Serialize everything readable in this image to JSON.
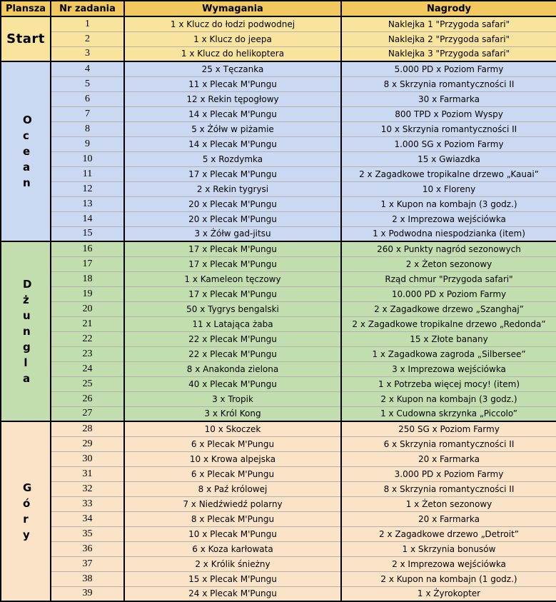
{
  "header": {
    "columns": [
      "Plansza",
      "Nr zadania",
      "Wymagania",
      "Nagrody"
    ]
  },
  "colors": {
    "header_bg": "#F1C95E",
    "border": "#000000",
    "start_bg": "#F9E49E",
    "ocean_bg": "#CAD9F1",
    "jungle_bg": "#C3DEAE",
    "mountains_bg": "#FBE3C7"
  },
  "sections": [
    {
      "label": "Start",
      "label_orientation": "horizontal",
      "bg": "#F9E49E",
      "tasks": [
        {
          "nr": "1",
          "wymagania": "1 x Klucz do łodzi podwodnej",
          "nagrody": "Naklejka 1 \"Przygoda safari\""
        },
        {
          "nr": "2",
          "wymagania": "1 x Klucz do jeepa",
          "nagrody": "Naklejka 2 \"Przygoda safari\""
        },
        {
          "nr": "3",
          "wymagania": "1 x Klucz do helikoptera",
          "nagrody": "Naklejka 3 \"Przygoda safari\""
        }
      ]
    },
    {
      "label": "Ocean",
      "label_orientation": "vertical",
      "bg": "#CAD9F1",
      "tasks": [
        {
          "nr": "4",
          "wymagania": "25 x Tęczanka",
          "nagrody": "5.000 PD x Poziom Farmy"
        },
        {
          "nr": "5",
          "wymagania": "11 x Plecak M'Pungu",
          "nagrody": "8 x Skrzynia romantyczności II"
        },
        {
          "nr": "6",
          "wymagania": "12 x Rekin tępogłowy",
          "nagrody": "30 x Farmarka"
        },
        {
          "nr": "7",
          "wymagania": "14 x Plecak M'Pungu",
          "nagrody": "800 TPD x Poziom Wyspy"
        },
        {
          "nr": "8",
          "wymagania": "5 x Żółw w piżamie",
          "nagrody": "10 x Skrzynia romantyczności II"
        },
        {
          "nr": "9",
          "wymagania": "14 x Plecak M'Pungu",
          "nagrody": "1.000 SG x Poziom Farmy"
        },
        {
          "nr": "10",
          "wymagania": "5 x Rozdymka",
          "nagrody": "15 x Gwiazdka"
        },
        {
          "nr": "11",
          "wymagania": "17 x Plecak M'Pungu",
          "nagrody": "2 x Zagadkowe tropikalne drzewo „Kauai”"
        },
        {
          "nr": "12",
          "wymagania": "2 x Rekin tygrysi",
          "nagrody": "10 x Floreny"
        },
        {
          "nr": "13",
          "wymagania": "20 x Plecak M'Pungu",
          "nagrody": "1 x Kupon na kombajn (3 godz.)"
        },
        {
          "nr": "14",
          "wymagania": "20 x Plecak M'Pungu",
          "nagrody": "2 x Imprezowa wejściówka"
        },
        {
          "nr": "15",
          "wymagania": "3 x Żółw gad-jitsu",
          "nagrody": "1 x Podwodna niespodzianka (item)"
        }
      ]
    },
    {
      "label": "Dżungla",
      "label_orientation": "vertical",
      "bg": "#C3DEAE",
      "tasks": [
        {
          "nr": "16",
          "wymagania": "17 x Plecak M'Pungu",
          "nagrody": "260 x Punkty nagród sezonowych"
        },
        {
          "nr": "17",
          "wymagania": "17 x Plecak M'Pungu",
          "nagrody": "2 x Żeton sezonowy"
        },
        {
          "nr": "18",
          "wymagania": "1 x Kameleon tęczowy",
          "nagrody": "Rząd chmur \"Przygoda safari\""
        },
        {
          "nr": "19",
          "wymagania": "17 x Plecak M'Pungu",
          "nagrody": "10.000 PD x Poziom Farmy"
        },
        {
          "nr": "20",
          "wymagania": "50 x Tygrys bengalski",
          "nagrody": "2 x Zagadkowe drzewo „Szanghaj”"
        },
        {
          "nr": "21",
          "wymagania": "11 x Latająca żaba",
          "nagrody": "2 x Zagadkowe tropikalne drzewo „Redonda”"
        },
        {
          "nr": "22",
          "wymagania": "22 x Plecak M'Pungu",
          "nagrody": "15 x Złote banany"
        },
        {
          "nr": "23",
          "wymagania": "22 x Plecak M'Pungu",
          "nagrody": "1 x Zagadkowa zagroda „Silbersee”"
        },
        {
          "nr": "24",
          "wymagania": "8 x Anakonda zielona",
          "nagrody": "3 x Imprezowa wejściówka"
        },
        {
          "nr": "25",
          "wymagania": "40 x Plecak M'Pungu",
          "nagrody": "1 x Potrzeba więcej mocy! (item)"
        },
        {
          "nr": "26",
          "wymagania": "3 x Tropik",
          "nagrody": "2 x Kupon na kombajn (3 godz.)"
        },
        {
          "nr": "27",
          "wymagania": "3 x Król Kong",
          "nagrody": "1 x Cudowna skrzynka „Piccolo”"
        }
      ]
    },
    {
      "label": "Góry",
      "label_orientation": "vertical",
      "bg": "#FBE3C7",
      "tasks": [
        {
          "nr": "28",
          "wymagania": "10 x Skoczek",
          "nagrody": "250 SG x Poziom Farmy"
        },
        {
          "nr": "29",
          "wymagania": "6 x Plecak M'Pungu",
          "nagrody": "6 x Skrzynia romantyczności II"
        },
        {
          "nr": "30",
          "wymagania": "10 x Krowa alpejska",
          "nagrody": "20 x Farmarka"
        },
        {
          "nr": "31",
          "wymagania": "6 x Plecak M'Pungu",
          "nagrody": "3.000 PD x Poziom Farmy"
        },
        {
          "nr": "32",
          "wymagania": "8 x Paź królowej",
          "nagrody": "8 x Skrzynia romantyczności II"
        },
        {
          "nr": "33",
          "wymagania": "7 x Niedźwiedź polarny",
          "nagrody": "1 x Żeton sezonowy"
        },
        {
          "nr": "34",
          "wymagania": "8 x Plecak M'Pungu",
          "nagrody": "20 x Farmarka"
        },
        {
          "nr": "35",
          "wymagania": "10 x Plecak M'Pungu",
          "nagrody": "2 x Zagadkowe drzewo „Detroit”"
        },
        {
          "nr": "36",
          "wymagania": "6 x Koza karłowata",
          "nagrody": "1 x Skrzynia bonusów"
        },
        {
          "nr": "37",
          "wymagania": "2 x Królik śnieżny",
          "nagrody": "2 x Imprezowa wejściówka"
        },
        {
          "nr": "38",
          "wymagania": "15 x Plecak M'Pungu",
          "nagrody": "2 x Kupon na kombajn (1 godz.)"
        },
        {
          "nr": "39",
          "wymagania": "24 x Plecak M'Pungu",
          "nagrody": "1 x Żyrokopter"
        }
      ]
    }
  ]
}
